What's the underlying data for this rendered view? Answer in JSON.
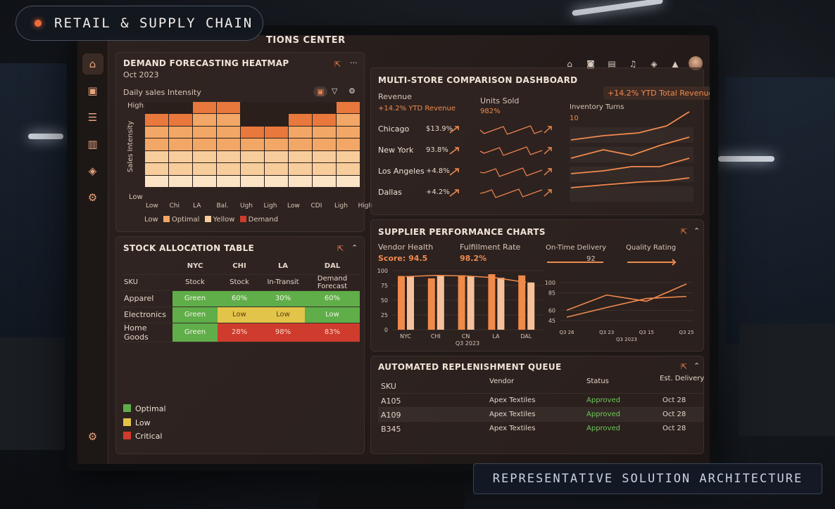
{
  "badge": {
    "label": "RETAIL & SUPPLY CHAIN"
  },
  "footer_label": "REPRESENTATIVE SOLUTION ARCHITECTURE",
  "app": {
    "title": "TIONS CENTER",
    "top_icons": [
      "home-icon",
      "camera-icon",
      "document-icon",
      "bell-icon",
      "cube-icon",
      "notification-icon",
      "avatar"
    ]
  },
  "sidebar": {
    "items": [
      "home-icon",
      "calendar-icon",
      "database-icon",
      "bar-chart-icon",
      "cube-icon",
      "settings-icon"
    ],
    "bottom": "settings-icon"
  },
  "heatmap": {
    "title": "DEMAND FORECASTING HEATMAP",
    "subtitle": "Oct 2023",
    "caption": "Daily sales Intensity",
    "ylabel": "Sales Intensity",
    "y_high": "High",
    "y_low": "Low",
    "columns": [
      "Low",
      "Chi",
      "LA",
      "Bal.",
      "Ugh",
      "Ligh",
      "Low",
      "CDI",
      "Ligh",
      "High"
    ],
    "legend": [
      "Low",
      "Optimal",
      "Yellow",
      "Demand"
    ],
    "colors": {
      "dark": "#e8783c",
      "mid": "#f3a766",
      "light": "#f8cd9c",
      "pale": "#fbe3c6",
      "legend_red": "#cf3b2c"
    }
  },
  "stock": {
    "title": "STOCK ALLOCATION TABLE",
    "sku_label": "SKU",
    "regions": [
      "NYC",
      "CHI",
      "LA",
      "DAL"
    ],
    "subheaders": [
      "Stock",
      "Stock",
      "In-Transit",
      "Demand Forecast"
    ],
    "rows": [
      {
        "sku": "Apparel",
        "cells": [
          [
            "Green",
            "green"
          ],
          [
            "60%",
            "green"
          ],
          [
            "30%",
            "green"
          ],
          [
            "60%",
            "green"
          ]
        ]
      },
      {
        "sku": "Electronics",
        "cells": [
          [
            "Green",
            "green"
          ],
          [
            "Low",
            "yellow"
          ],
          [
            "Low",
            "yellow"
          ],
          [
            "Low",
            "green"
          ]
        ]
      },
      {
        "sku": "Home Goods",
        "cells": [
          [
            "Green",
            "green"
          ],
          [
            "28%",
            "red"
          ],
          [
            "98%",
            "red"
          ],
          [
            "83%",
            "red"
          ]
        ]
      }
    ],
    "legend": [
      {
        "label": "Optimal",
        "color": "#5fae49"
      },
      {
        "label": "Low",
        "color": "#e2c44a"
      },
      {
        "label": "Critical",
        "color": "#cf3b2c"
      }
    ]
  },
  "multistore": {
    "title": "MULTI-STORE COMPARISON DASHBOARD",
    "badge": "+14.2% YTD Total Revenue",
    "revenue_label": "Revenue",
    "revenue_sub": "+14.2% YTD Revenue",
    "units_label": "Units Sold",
    "units_value": "982%",
    "inventory_label": "Inventory Turns",
    "inventory_value": "10",
    "stores": [
      {
        "name": "Chicago",
        "value": "$13.9%"
      },
      {
        "name": "New York",
        "value": "93.8%"
      },
      {
        "name": "Los Angeles",
        "value": "+4.8%"
      },
      {
        "name": "Dallas",
        "value": "+4.2%"
      }
    ]
  },
  "supplier": {
    "title": "SUPPLIER PERFORMANCE CHARTS",
    "vendor_label": "Vendor Health",
    "vendor_score": "Score: 94.5",
    "fulfillment_label": "Fulfillment Rate",
    "fulfillment_value": "98.2%",
    "ontime_label": "On-Time Delivery",
    "ontime_value": "92",
    "quality_label": "Quality Rating",
    "bar_xlabel": "Q3 2023",
    "line_xlabel": "Q3 2023"
  },
  "chart_data": [
    {
      "type": "bar",
      "categories": [
        "NYC",
        "CHI",
        "CN",
        "LA",
        "DAL"
      ],
      "series": [
        {
          "values": [
            91,
            87,
            92,
            94,
            92
          ]
        },
        {
          "values": [
            90,
            92,
            91,
            88,
            80
          ]
        }
      ],
      "xlabel": "Q3 2023",
      "ylim": [
        0,
        100
      ],
      "yticks": [
        0,
        25,
        50,
        75,
        100
      ]
    },
    {
      "type": "line",
      "categories": [
        "Q3 26",
        "Q3 23",
        "Q3 15",
        "Q3 25"
      ],
      "series": [
        {
          "values": [
            60,
            82,
            73,
            98
          ]
        },
        {
          "values": [
            50,
            64,
            77,
            80
          ]
        }
      ],
      "xlabel": "Q3 2023",
      "yticks": [
        45,
        60,
        85,
        100
      ]
    }
  ],
  "queue": {
    "title": "AUTOMATED REPLENISHMENT QUEUE",
    "headers": [
      "SKU",
      "Vendor",
      "Status",
      "Est. Delivery"
    ],
    "rows": [
      {
        "sku": "A105",
        "vendor": "Apex Textiles",
        "status": "Approved",
        "date": "Oct 28"
      },
      {
        "sku": "A109",
        "vendor": "Apex Textiles",
        "status": "Approved",
        "date": "Oct 28"
      },
      {
        "sku": "B345",
        "vendor": "Apex Textiles",
        "status": "Approved",
        "date": "Oct 28"
      }
    ]
  }
}
